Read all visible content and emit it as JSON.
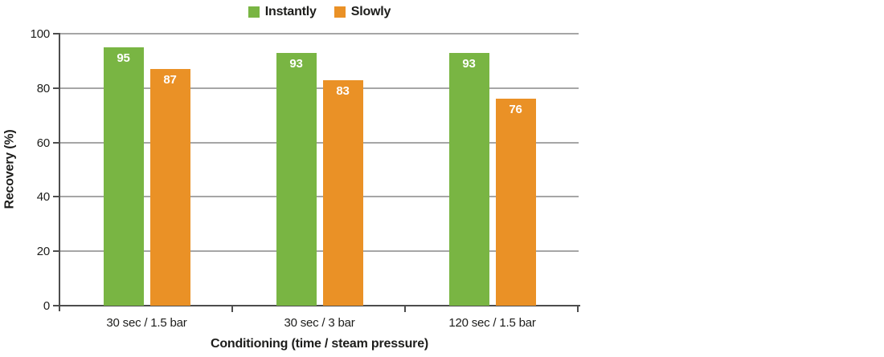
{
  "chart_data": {
    "type": "bar",
    "categories": [
      "30 sec / 1.5 bar",
      "30 sec / 3 bar",
      "120 sec / 1.5 bar"
    ],
    "series": [
      {
        "name": "Instantly",
        "color": "#79b543",
        "values": [
          95,
          93,
          93
        ]
      },
      {
        "name": "Slowly",
        "color": "#ea9126",
        "values": [
          87,
          83,
          76
        ]
      }
    ],
    "title": "",
    "xlabel": "Conditioning (time / steam pressure)",
    "ylabel": "Recovery (%)",
    "ylim": [
      0,
      100
    ],
    "yticks": [
      0,
      20,
      40,
      60,
      80,
      100
    ],
    "grid": "horizontal",
    "legend_position": "top-center",
    "bar_value_labels": true
  },
  "colors": {
    "axis": "#4d4d4d",
    "gridline": "#a6a6a6",
    "text": "#1d1d1b",
    "bar_label_text": "#ffffff",
    "background": "#ffffff"
  }
}
